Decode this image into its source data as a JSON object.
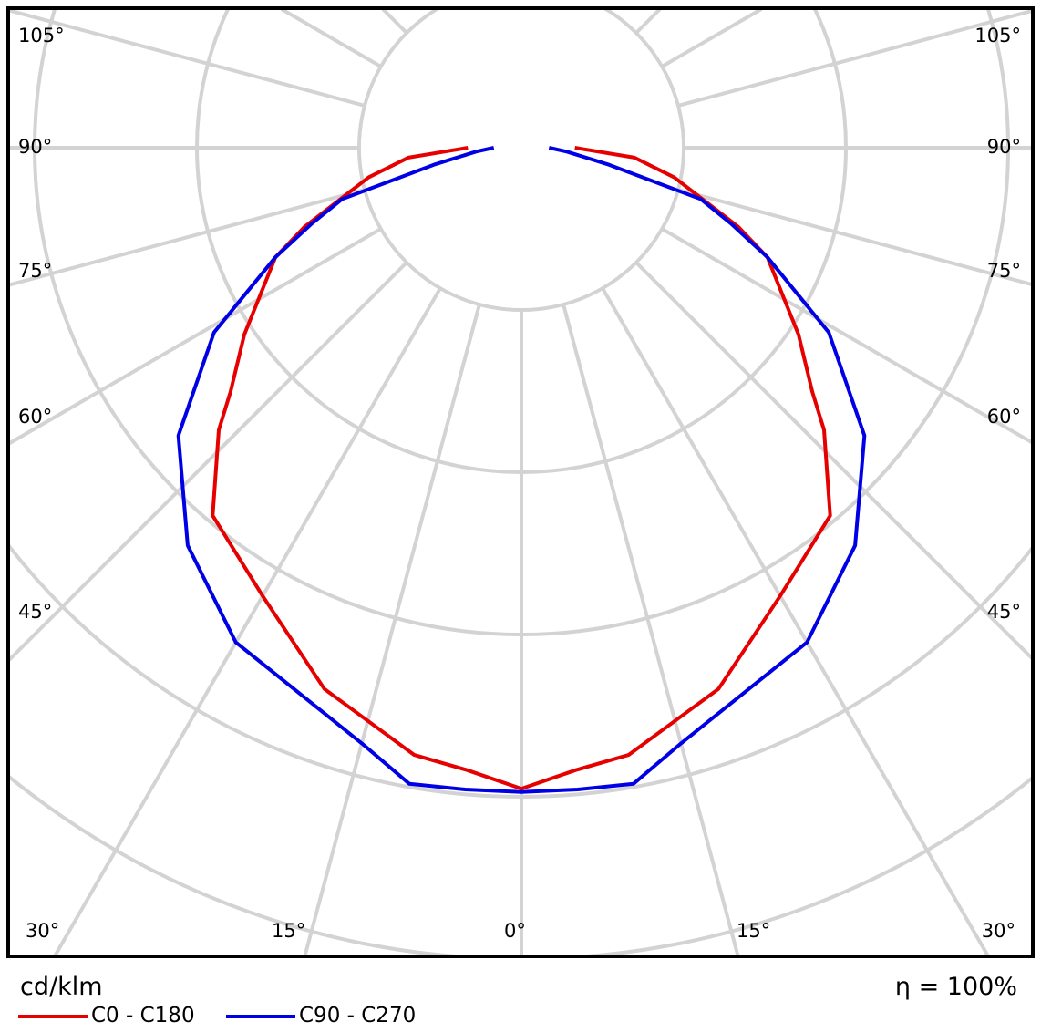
{
  "chart_data": {
    "type": "polar-line",
    "unit_label": "cd/klm",
    "efficiency_label": "η = 100%",
    "angle_labels_left": [
      "105°",
      "90°",
      "75°",
      "60°",
      "45°",
      "30°"
    ],
    "angle_labels_right": [
      "105°",
      "90°",
      "75°",
      "60°",
      "45°",
      "30°"
    ],
    "angle_labels_bottom": [
      "15°",
      "0°",
      "15°"
    ],
    "radial_grid_step": 100,
    "angle_grid_step_deg": 15,
    "grid": true,
    "legend_placement": "bottom-left",
    "series": [
      {
        "name": "C0 - C180",
        "color": "#e60000",
        "angles": [
          0,
          5,
          10,
          20,
          30,
          40,
          47,
          50,
          56,
          66,
          70,
          79,
          85,
          90
        ],
        "values": [
          395,
          385,
          380,
          355,
          319,
          296,
          255,
          234,
          206,
          166,
          142,
          96,
          70,
          33
        ]
      },
      {
        "name": "C90 - C270",
        "color": "#0000e6",
        "angles": [
          0,
          5,
          10,
          15,
          30,
          40,
          50,
          59,
          66,
          70,
          74,
          79,
          85,
          90
        ],
        "values": [
          397,
          397,
          398,
          380,
          352,
          320,
          276,
          221,
          166,
          138,
          115,
          55,
          28,
          17
        ]
      }
    ]
  }
}
